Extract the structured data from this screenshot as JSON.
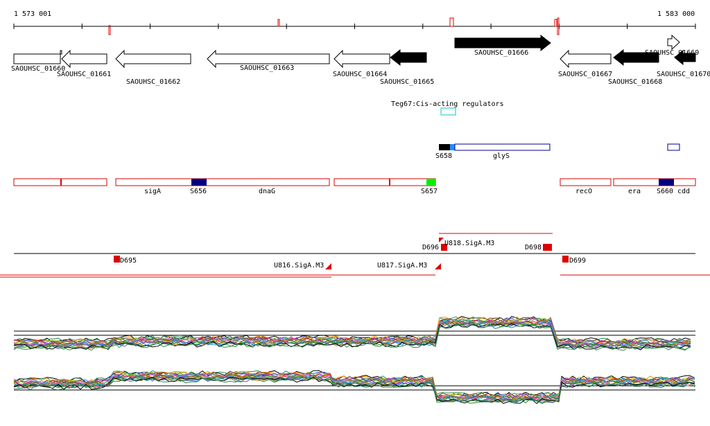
{
  "ruler": {
    "start_label": "1 573 001",
    "end_label": "1 583 000"
  },
  "genes": [
    {
      "label": "SAOUHSC_01660",
      "filled": false,
      "strand": "-"
    },
    {
      "label": "SAOUHSC_01661",
      "filled": false,
      "strand": "-"
    },
    {
      "label": "SAOUHSC_01662",
      "filled": false,
      "strand": "-"
    },
    {
      "label": "SAOUHSC_01663",
      "filled": false,
      "strand": "-"
    },
    {
      "label": "SAOUHSC_01664",
      "filled": false,
      "strand": "-"
    },
    {
      "label": "SAOUHSC_01665",
      "filled": true,
      "strand": "-"
    },
    {
      "label": "SAOUHSC_01666",
      "filled": true,
      "strand": "+"
    },
    {
      "label": "SAOUHSC_01667",
      "filled": false,
      "strand": "-"
    },
    {
      "label": "SAOUHSC_01668",
      "filled": true,
      "strand": "-"
    },
    {
      "label": "SAOUHSC_01669",
      "filled": false,
      "strand": "+"
    },
    {
      "label": "SAOUHSC_01670",
      "filled": true,
      "strand": "-"
    }
  ],
  "regulators": {
    "label": "Teg67:Cis-acting regulators"
  },
  "track_glys": {
    "labels": [
      "S658",
      "glyS"
    ]
  },
  "operon_track": {
    "labels": [
      "sigA",
      "S656",
      "dnaG",
      "S657",
      "recO",
      "era",
      "S660",
      "cdd"
    ]
  },
  "promoter_track": {
    "labels": [
      "D695",
      "U816.SigA.M3",
      "U817.SigA.M3",
      "D696",
      "U818.SigA.M3",
      "D698",
      "D699"
    ]
  },
  "colors": {
    "track_red": "#dd0000",
    "navy": "#000080",
    "cyan_box": "#00c8c8",
    "green": "#00ee00",
    "light_blue": "#1e90ff",
    "gene_black": "#000000"
  }
}
